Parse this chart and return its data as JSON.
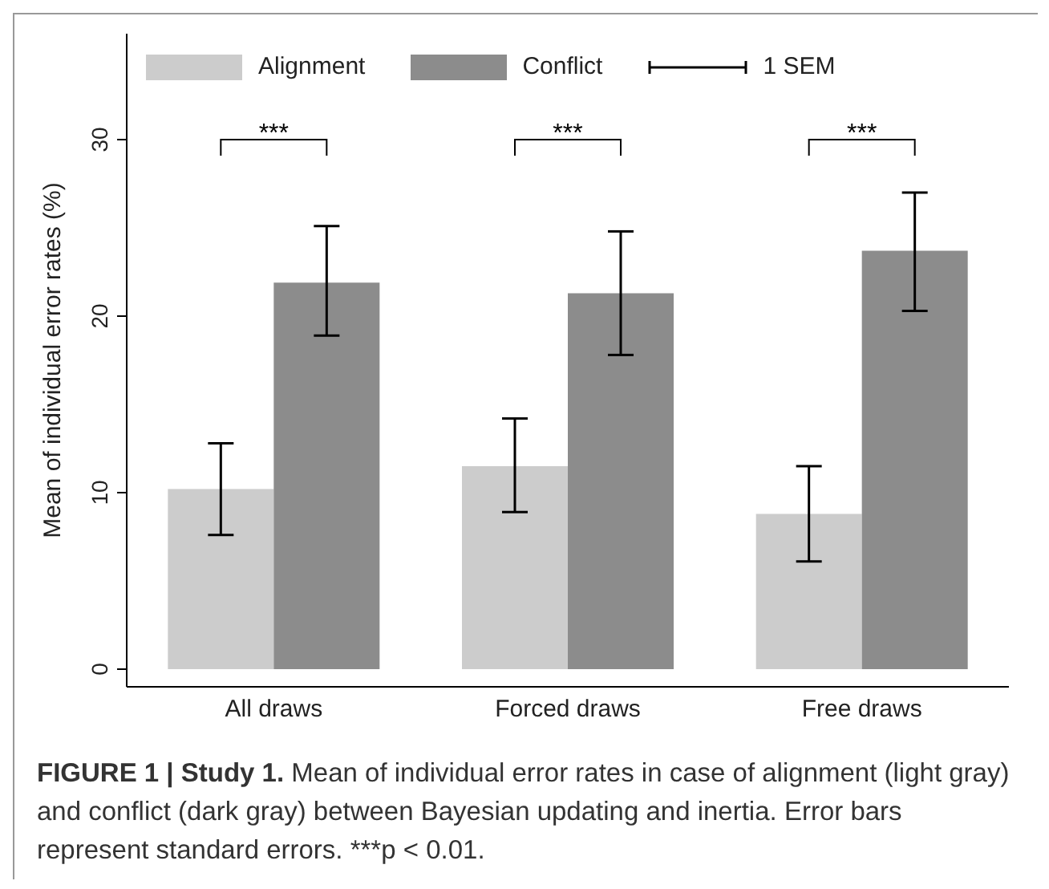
{
  "chart_data": {
    "type": "bar",
    "title": "FIGURE 1 | Study 1.",
    "ylabel": "Mean of individual error rates (%)",
    "categories": [
      "All draws",
      "Forced draws",
      "Free draws"
    ],
    "series": [
      {
        "name": "Alignment",
        "color": "#cccccc",
        "values": [
          10.2,
          11.5,
          8.8
        ],
        "errors": [
          [
            7.6,
            12.8
          ],
          [
            8.9,
            14.2
          ],
          [
            6.1,
            11.5
          ]
        ]
      },
      {
        "name": "Conflict",
        "color": "#8c8c8c",
        "values": [
          21.9,
          21.3,
          23.7
        ],
        "errors": [
          [
            18.9,
            25.1
          ],
          [
            17.8,
            24.8
          ],
          [
            20.3,
            27.0
          ]
        ]
      }
    ],
    "ylim": [
      -1,
      36
    ],
    "yticks": [
      0,
      10,
      20,
      30
    ],
    "legend": "top",
    "annotations": [
      "***",
      "***",
      "***",
      "1 SEM",
      "Mean of individual error rates in case of alignment (light gray) and conflict (dark gray) between Bayesian updating and inertia. Error bars represent standard errors. ***p < 0.01."
    ]
  }
}
